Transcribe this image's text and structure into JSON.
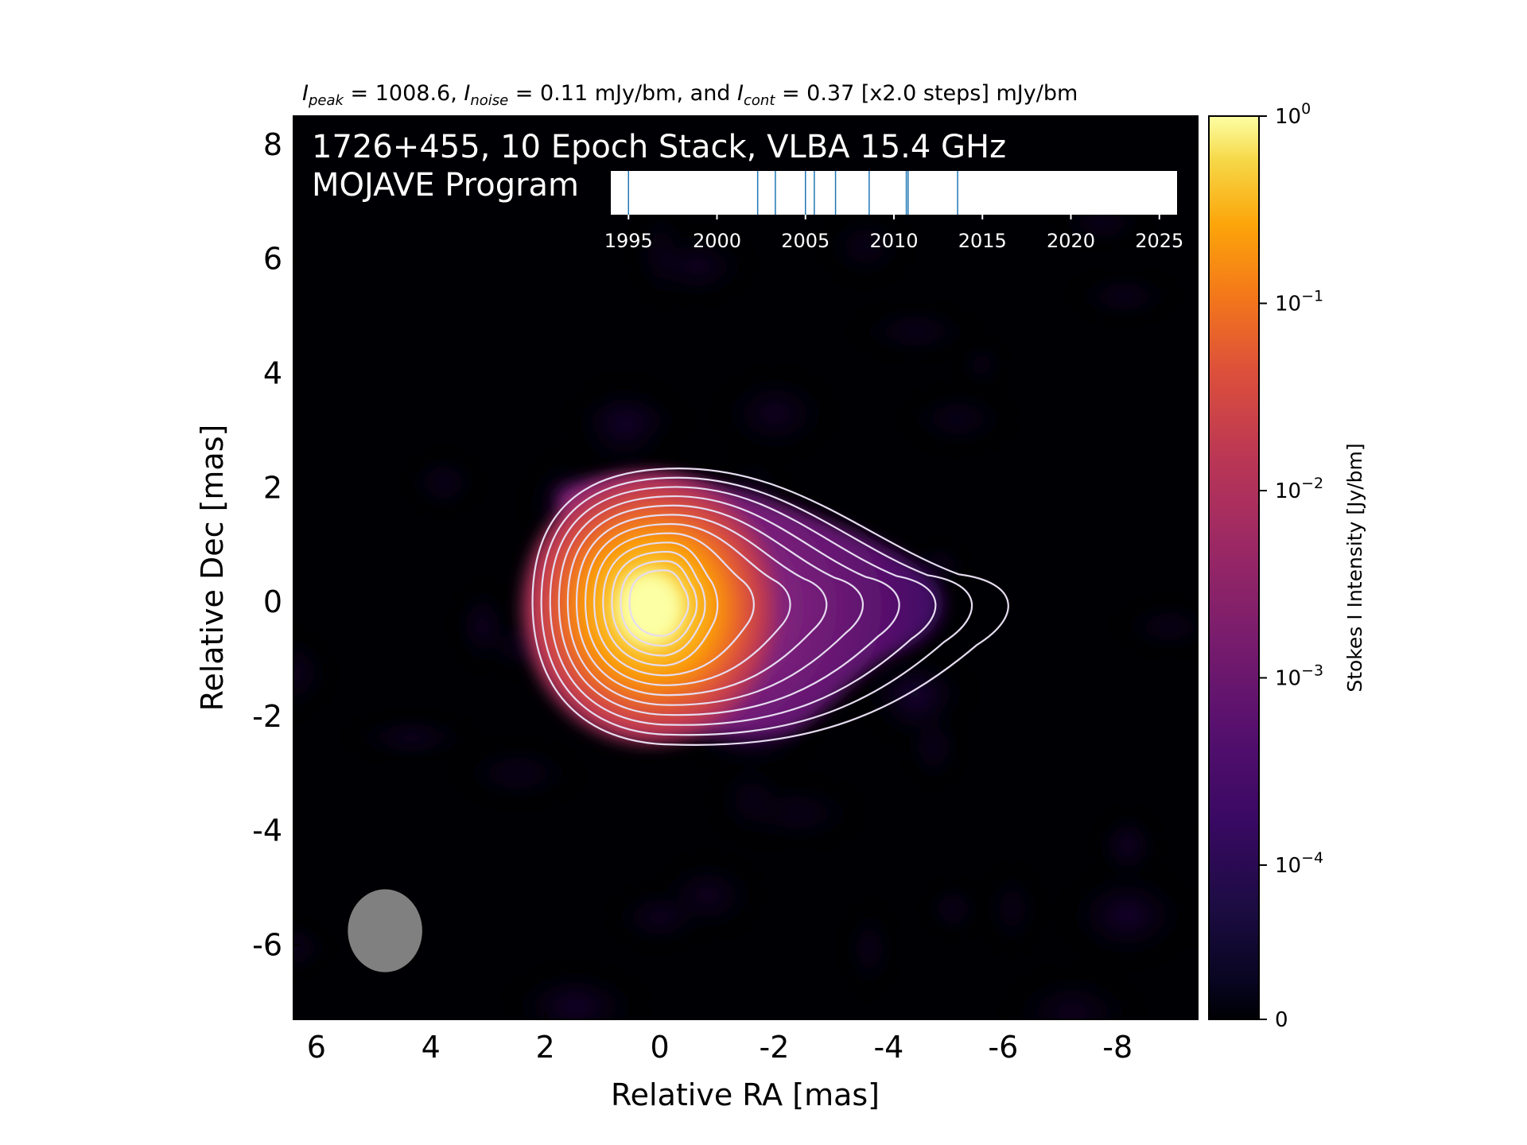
{
  "chart_data": {
    "type": "heatmap",
    "title_parts": {
      "peak_sym": "I",
      "peak_sub": "peak",
      "peak_val": " = 1008.6, ",
      "noise_sym": "I",
      "noise_sub": "noise",
      "noise_val": " = 0.11 mJy/bm, and ",
      "cont_sym": "I",
      "cont_sub": "cont",
      "cont_val": " = 0.37 [x2.0 steps] mJy/bm"
    },
    "label_line1": "1726+455, 10 Epoch Stack, VLBA 15.4 GHz",
    "label_line2": "MOJAVE Program",
    "xlabel": "Relative RA [mas]",
    "ylabel": "Relative Dec [mas]",
    "x_ticks": [
      6,
      4,
      2,
      0,
      -2,
      -4,
      -6,
      -8
    ],
    "y_ticks": [
      8,
      6,
      4,
      2,
      0,
      -2,
      -4,
      -6
    ],
    "xlim": [
      6.4,
      -9.4
    ],
    "ylim": [
      -7.3,
      8.5
    ],
    "colorbar": {
      "label": "Stokes I Intensity [Jy/bm]",
      "scale": "log",
      "ticks": [
        {
          "base": "10",
          "exp": "0",
          "value": 1
        },
        {
          "base": "10",
          "exp": "−1",
          "value": 0.1
        },
        {
          "base": "10",
          "exp": "−2",
          "value": 0.01
        },
        {
          "base": "10",
          "exp": "−3",
          "value": 0.001
        },
        {
          "base": "10",
          "exp": "−4",
          "value": 0.0001
        },
        {
          "base": "0",
          "exp": "",
          "value": 0
        }
      ],
      "colormap": "inferno"
    },
    "core": {
      "ra": 0.0,
      "dec": 0.0,
      "peak_jy": 1.0086
    },
    "jet_direction": "west (negative RA)",
    "contour_levels_mjy": [
      0.37,
      0.74,
      1.48,
      2.96,
      5.92,
      11.84,
      23.68,
      47.36,
      94.72,
      189.44,
      378.88,
      757.76
    ],
    "beam": {
      "ra": 4.8,
      "dec": -5.75,
      "major_mas": 1.45,
      "minor_mas": 1.3,
      "color": "#808080"
    },
    "epoch_timeline": {
      "axis_ticks": [
        "1995",
        "2000",
        "2005",
        "2010",
        "2015",
        "2020",
        "2025"
      ],
      "range": [
        1994,
        2026
      ],
      "epochs": [
        1995.0,
        2002.3,
        2003.3,
        2005.0,
        2005.5,
        2006.7,
        2008.6,
        2010.7,
        2010.8,
        2013.6
      ],
      "line_color": "#1f77b4"
    }
  }
}
